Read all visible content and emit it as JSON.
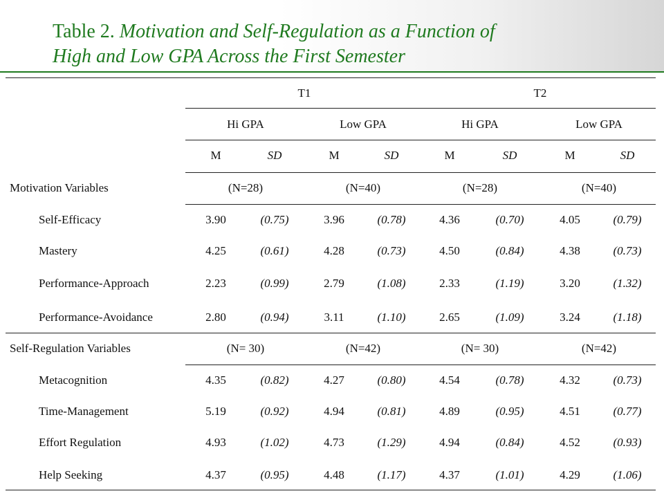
{
  "title": {
    "prefix": "Table 2. ",
    "line1_rest": "Motivation and Self-Regulation as a Function of",
    "line2": "High and Low GPA Across the First Semester"
  },
  "header": {
    "times": [
      "T1",
      "T2"
    ],
    "groups": [
      "Hi GPA",
      "Low GPA",
      "Hi GPA",
      "Low GPA"
    ],
    "m": "M",
    "sd": "SD"
  },
  "sections": [
    {
      "label": "Motivation Variables",
      "ns": [
        "(N=28)",
        "(N=40)",
        "(N=28)",
        "(N=40)"
      ],
      "rows": [
        {
          "label": "Self-Efficacy",
          "values": [
            "3.90",
            "(0.75)",
            "3.96",
            "(0.78)",
            "4.36",
            "(0.70)",
            "4.05",
            "(0.79)"
          ]
        },
        {
          "label": "Mastery",
          "values": [
            "4.25",
            "(0.61)",
            "4.28",
            "(0.73)",
            "4.50",
            "(0.84)",
            "4.38",
            "(0.73)"
          ]
        },
        {
          "label": "Performance-Approach",
          "values": [
            "2.23",
            "(0.99)",
            "2.79",
            "(1.08)",
            "2.33",
            "(1.19)",
            "3.20",
            "(1.32)"
          ]
        },
        {
          "label": "Performance-Avoidance",
          "values": [
            "2.80",
            "(0.94)",
            "3.11",
            "(1.10)",
            "2.65",
            "(1.09)",
            "3.24",
            "(1.18)"
          ]
        }
      ]
    },
    {
      "label": "Self-Regulation Variables",
      "ns": [
        "(N= 30)",
        "(N=42)",
        "(N= 30)",
        "(N=42)"
      ],
      "rows": [
        {
          "label": "Metacognition",
          "values": [
            "4.35",
            "(0.82)",
            "4.27",
            "(0.80)",
            "4.54",
            "(0.78)",
            "4.32",
            "(0.73)"
          ]
        },
        {
          "label": "Time-Management",
          "values": [
            "5.19",
            "(0.92)",
            "4.94",
            "(0.81)",
            "4.89",
            "(0.95)",
            "4.51",
            "(0.77)"
          ]
        },
        {
          "label": "Effort Regulation",
          "values": [
            "4.93",
            "(1.02)",
            "4.73",
            "(1.29)",
            "4.94",
            "(0.84)",
            "4.52",
            "(0.93)"
          ]
        },
        {
          "label": "Help Seeking",
          "values": [
            "4.37",
            "(0.95)",
            "4.48",
            "(1.17)",
            "4.37",
            "(1.01)",
            "4.29",
            "(1.06)"
          ]
        }
      ]
    }
  ]
}
